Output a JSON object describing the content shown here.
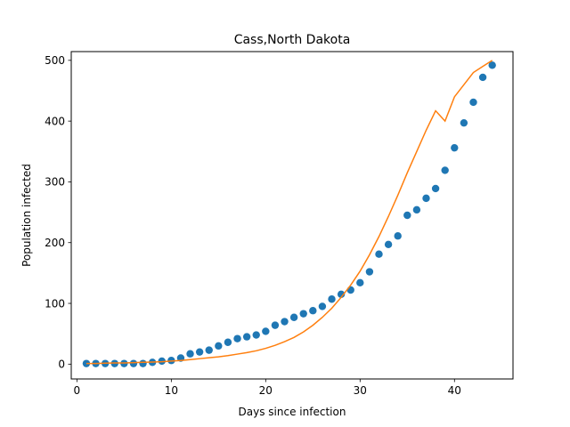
{
  "chart_data": {
    "type": "scatter",
    "title": "Cass,North Dakota",
    "xlabel": "Days since infection",
    "ylabel": "Population infected",
    "xlim": [
      -0.6,
      46.2
    ],
    "ylim": [
      -24.4,
      514.4
    ],
    "xticks": [
      0,
      10,
      20,
      30,
      40
    ],
    "yticks": [
      0,
      100,
      200,
      300,
      400,
      500
    ],
    "grid": false,
    "colors": {
      "points": "#1f77b4",
      "fit": "#ff7f0e"
    },
    "series": [
      {
        "kind": "scatter",
        "x": [
          1,
          2,
          3,
          4,
          5,
          6,
          7,
          8,
          9,
          10,
          11,
          12,
          13,
          14,
          15,
          16,
          17,
          18,
          19,
          20,
          21,
          22,
          23,
          24,
          25,
          26,
          27,
          28,
          29,
          30,
          31,
          32,
          33,
          34,
          35,
          36,
          37,
          38,
          39,
          40,
          41,
          42,
          43,
          44
        ],
        "y": [
          1,
          1,
          1,
          1,
          1,
          1,
          1,
          3,
          5,
          6,
          10,
          17,
          20,
          23,
          30,
          36,
          42,
          45,
          48,
          54,
          64,
          70,
          77,
          83,
          88,
          95,
          107,
          115,
          122,
          134,
          152,
          181,
          197,
          211,
          245,
          254,
          273,
          289,
          319,
          356,
          397,
          431,
          472,
          492
        ]
      },
      {
        "kind": "line",
        "x": [
          1,
          2,
          3,
          4,
          5,
          6,
          7,
          8,
          9,
          10,
          11,
          12,
          13,
          14,
          15,
          16,
          17,
          18,
          19,
          20,
          21,
          22,
          23,
          24,
          25,
          26,
          27,
          28,
          29,
          30,
          31,
          32,
          33,
          34,
          35,
          36,
          37,
          38,
          39,
          40,
          41,
          42,
          43,
          44
        ],
        "y": [
          1,
          1,
          1.5,
          2,
          2,
          2.5,
          3,
          3.5,
          4,
          5,
          6,
          7.5,
          9,
          10.5,
          12,
          14,
          16.5,
          19,
          22,
          26,
          31,
          37,
          44,
          53,
          64,
          77,
          92,
          110,
          130,
          153,
          180,
          210,
          243,
          278,
          315,
          350,
          385,
          417,
          400,
          440,
          460,
          480,
          490,
          500
        ]
      }
    ]
  }
}
